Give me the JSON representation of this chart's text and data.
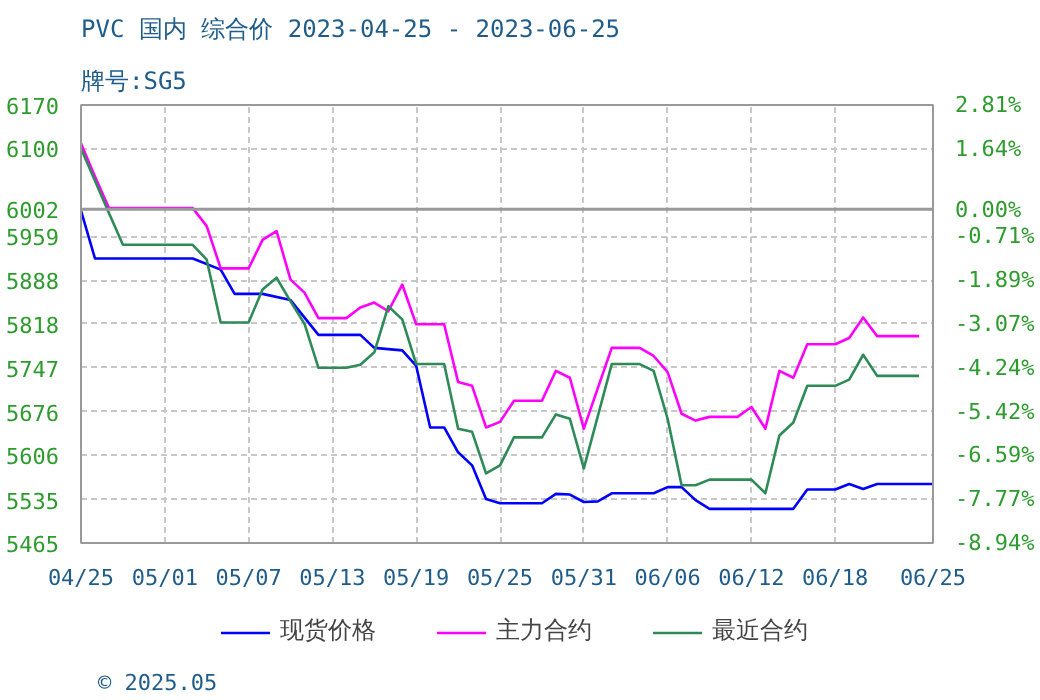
{
  "chart_data": {
    "type": "line",
    "title": "PVC 国内 综合价 2023-04-25 - 2023-06-25",
    "subtitle": "牌号:SG5",
    "annotations": [
      "© 2025.05"
    ],
    "xlim": [
      "2023-04-25",
      "2023-06-25"
    ],
    "xticks": [
      {
        "value": "2023-04-25",
        "label": "04/25"
      },
      {
        "value": "2023-05-01",
        "label": "05/01"
      },
      {
        "value": "2023-05-07",
        "label": "05/07"
      },
      {
        "value": "2023-05-13",
        "label": "05/13"
      },
      {
        "value": "2023-05-19",
        "label": "05/19"
      },
      {
        "value": "2023-05-25",
        "label": "05/25"
      },
      {
        "value": "2023-05-31",
        "label": "05/31"
      },
      {
        "value": "2023-06-06",
        "label": "06/06"
      },
      {
        "value": "2023-06-12",
        "label": "06/12"
      },
      {
        "value": "2023-06-18",
        "label": "06/18"
      },
      {
        "value": "2023-06-25",
        "label": "06/25"
      }
    ],
    "ylim": [
      5465,
      6170
    ],
    "yticks": [
      6170,
      6100,
      6002,
      5959,
      5888,
      5818,
      5747,
      5676,
      5606,
      5535,
      5465
    ],
    "y2lim": [
      -8.94,
      2.81
    ],
    "y2ticks": [
      {
        "value": 2.81,
        "label": "2.81%"
      },
      {
        "value": 1.64,
        "label": "1.64%"
      },
      {
        "value": 0,
        "label": "0.00%"
      },
      {
        "value": -0.71,
        "label": "-0.71%"
      },
      {
        "value": -1.89,
        "label": "-1.89%"
      },
      {
        "value": -3.07,
        "label": "-3.07%"
      },
      {
        "value": -4.24,
        "label": "-4.24%"
      },
      {
        "value": -5.42,
        "label": "-5.42%"
      },
      {
        "value": -6.59,
        "label": "-6.59%"
      },
      {
        "value": -7.77,
        "label": "-7.77%"
      },
      {
        "value": -8.94,
        "label": "-8.94%"
      }
    ],
    "ref_lines": [
      {
        "axis": "y",
        "value": 6002,
        "label": null,
        "color": "#999999",
        "line_style": "solid"
      }
    ],
    "grid": true,
    "legend": "bottom",
    "marker": "none",
    "line_style": "solid",
    "series": [
      {
        "name": "现货价格",
        "color": "#0000ff",
        "x": [
          "2023-04-25",
          "2023-04-26",
          "2023-05-03",
          "2023-05-05",
          "2023-05-06",
          "2023-05-08",
          "2023-05-10",
          "2023-05-12",
          "2023-05-15",
          "2023-05-16",
          "2023-05-18",
          "2023-05-19",
          "2023-05-20",
          "2023-05-21",
          "2023-05-22",
          "2023-05-23",
          "2023-05-24",
          "2023-05-25",
          "2023-05-28",
          "2023-05-29",
          "2023-05-30",
          "2023-05-31",
          "2023-06-01",
          "2023-06-02",
          "2023-06-05",
          "2023-06-06",
          "2023-06-07",
          "2023-06-08",
          "2023-06-09",
          "2023-06-15",
          "2023-06-16",
          "2023-06-18",
          "2023-06-19",
          "2023-06-20",
          "2023-06-21",
          "2023-06-25"
        ],
        "values": [
          6000,
          5923,
          5923,
          5905,
          5866,
          5866,
          5856,
          5800,
          5800,
          5779,
          5775,
          5750,
          5651,
          5651,
          5611,
          5590,
          5536,
          5529,
          5529,
          5544,
          5543,
          5531,
          5532,
          5545,
          5545,
          5555,
          5555,
          5534,
          5520,
          5520,
          5551,
          5551,
          5560,
          5552,
          5560,
          5560
        ]
      },
      {
        "name": "主力合约",
        "color": "#ff00ff",
        "x": [
          "2023-04-25",
          "2023-04-26",
          "2023-04-27",
          "2023-05-03",
          "2023-05-04",
          "2023-05-05",
          "2023-05-07",
          "2023-05-08",
          "2023-05-09",
          "2023-05-10",
          "2023-05-11",
          "2023-05-12",
          "2023-05-14",
          "2023-05-15",
          "2023-05-16",
          "2023-05-17",
          "2023-05-18",
          "2023-05-19",
          "2023-05-21",
          "2023-05-22",
          "2023-05-23",
          "2023-05-24",
          "2023-05-25",
          "2023-05-26",
          "2023-05-28",
          "2023-05-29",
          "2023-05-30",
          "2023-05-31",
          "2023-06-02",
          "2023-06-04",
          "2023-06-05",
          "2023-06-06",
          "2023-06-07",
          "2023-06-08",
          "2023-06-09",
          "2023-06-11",
          "2023-06-12",
          "2023-06-13",
          "2023-06-14",
          "2023-06-15",
          "2023-06-16",
          "2023-06-18",
          "2023-06-19",
          "2023-06-20",
          "2023-06-21",
          "2023-06-24"
        ],
        "values": [
          6108,
          6055,
          6004,
          6004,
          5975,
          5907,
          5907,
          5953,
          5967,
          5889,
          5868,
          5827,
          5827,
          5844,
          5852,
          5838,
          5881,
          5817,
          5817,
          5724,
          5718,
          5651,
          5660,
          5694,
          5694,
          5742,
          5731,
          5649,
          5779,
          5779,
          5766,
          5740,
          5673,
          5662,
          5668,
          5668,
          5684,
          5649,
          5742,
          5731,
          5785,
          5785,
          5795,
          5828,
          5798,
          5798
        ]
      },
      {
        "name": "最近合约",
        "color": "#2e8b57",
        "x": [
          "2023-04-25",
          "2023-04-27",
          "2023-04-28",
          "2023-05-03",
          "2023-05-04",
          "2023-05-05",
          "2023-05-07",
          "2023-05-08",
          "2023-05-09",
          "2023-05-10",
          "2023-05-11",
          "2023-05-12",
          "2023-05-14",
          "2023-05-15",
          "2023-05-16",
          "2023-05-17",
          "2023-05-18",
          "2023-05-19",
          "2023-05-21",
          "2023-05-22",
          "2023-05-23",
          "2023-05-24",
          "2023-05-25",
          "2023-05-26",
          "2023-05-28",
          "2023-05-29",
          "2023-05-30",
          "2023-05-31",
          "2023-06-02",
          "2023-06-04",
          "2023-06-05",
          "2023-06-06",
          "2023-06-07",
          "2023-06-08",
          "2023-06-09",
          "2023-06-12",
          "2023-06-13",
          "2023-06-14",
          "2023-06-15",
          "2023-06-16",
          "2023-06-18",
          "2023-06-19",
          "2023-06-20",
          "2023-06-21",
          "2023-06-24"
        ],
        "values": [
          6100,
          5996,
          5945,
          5945,
          5921,
          5820,
          5820,
          5873,
          5892,
          5854,
          5818,
          5747,
          5747,
          5752,
          5772,
          5846,
          5825,
          5753,
          5753,
          5649,
          5644,
          5577,
          5590,
          5635,
          5635,
          5672,
          5665,
          5585,
          5753,
          5753,
          5742,
          5665,
          5558,
          5558,
          5567,
          5567,
          5545,
          5638,
          5659,
          5718,
          5718,
          5728,
          5768,
          5734,
          5734
        ]
      }
    ]
  }
}
